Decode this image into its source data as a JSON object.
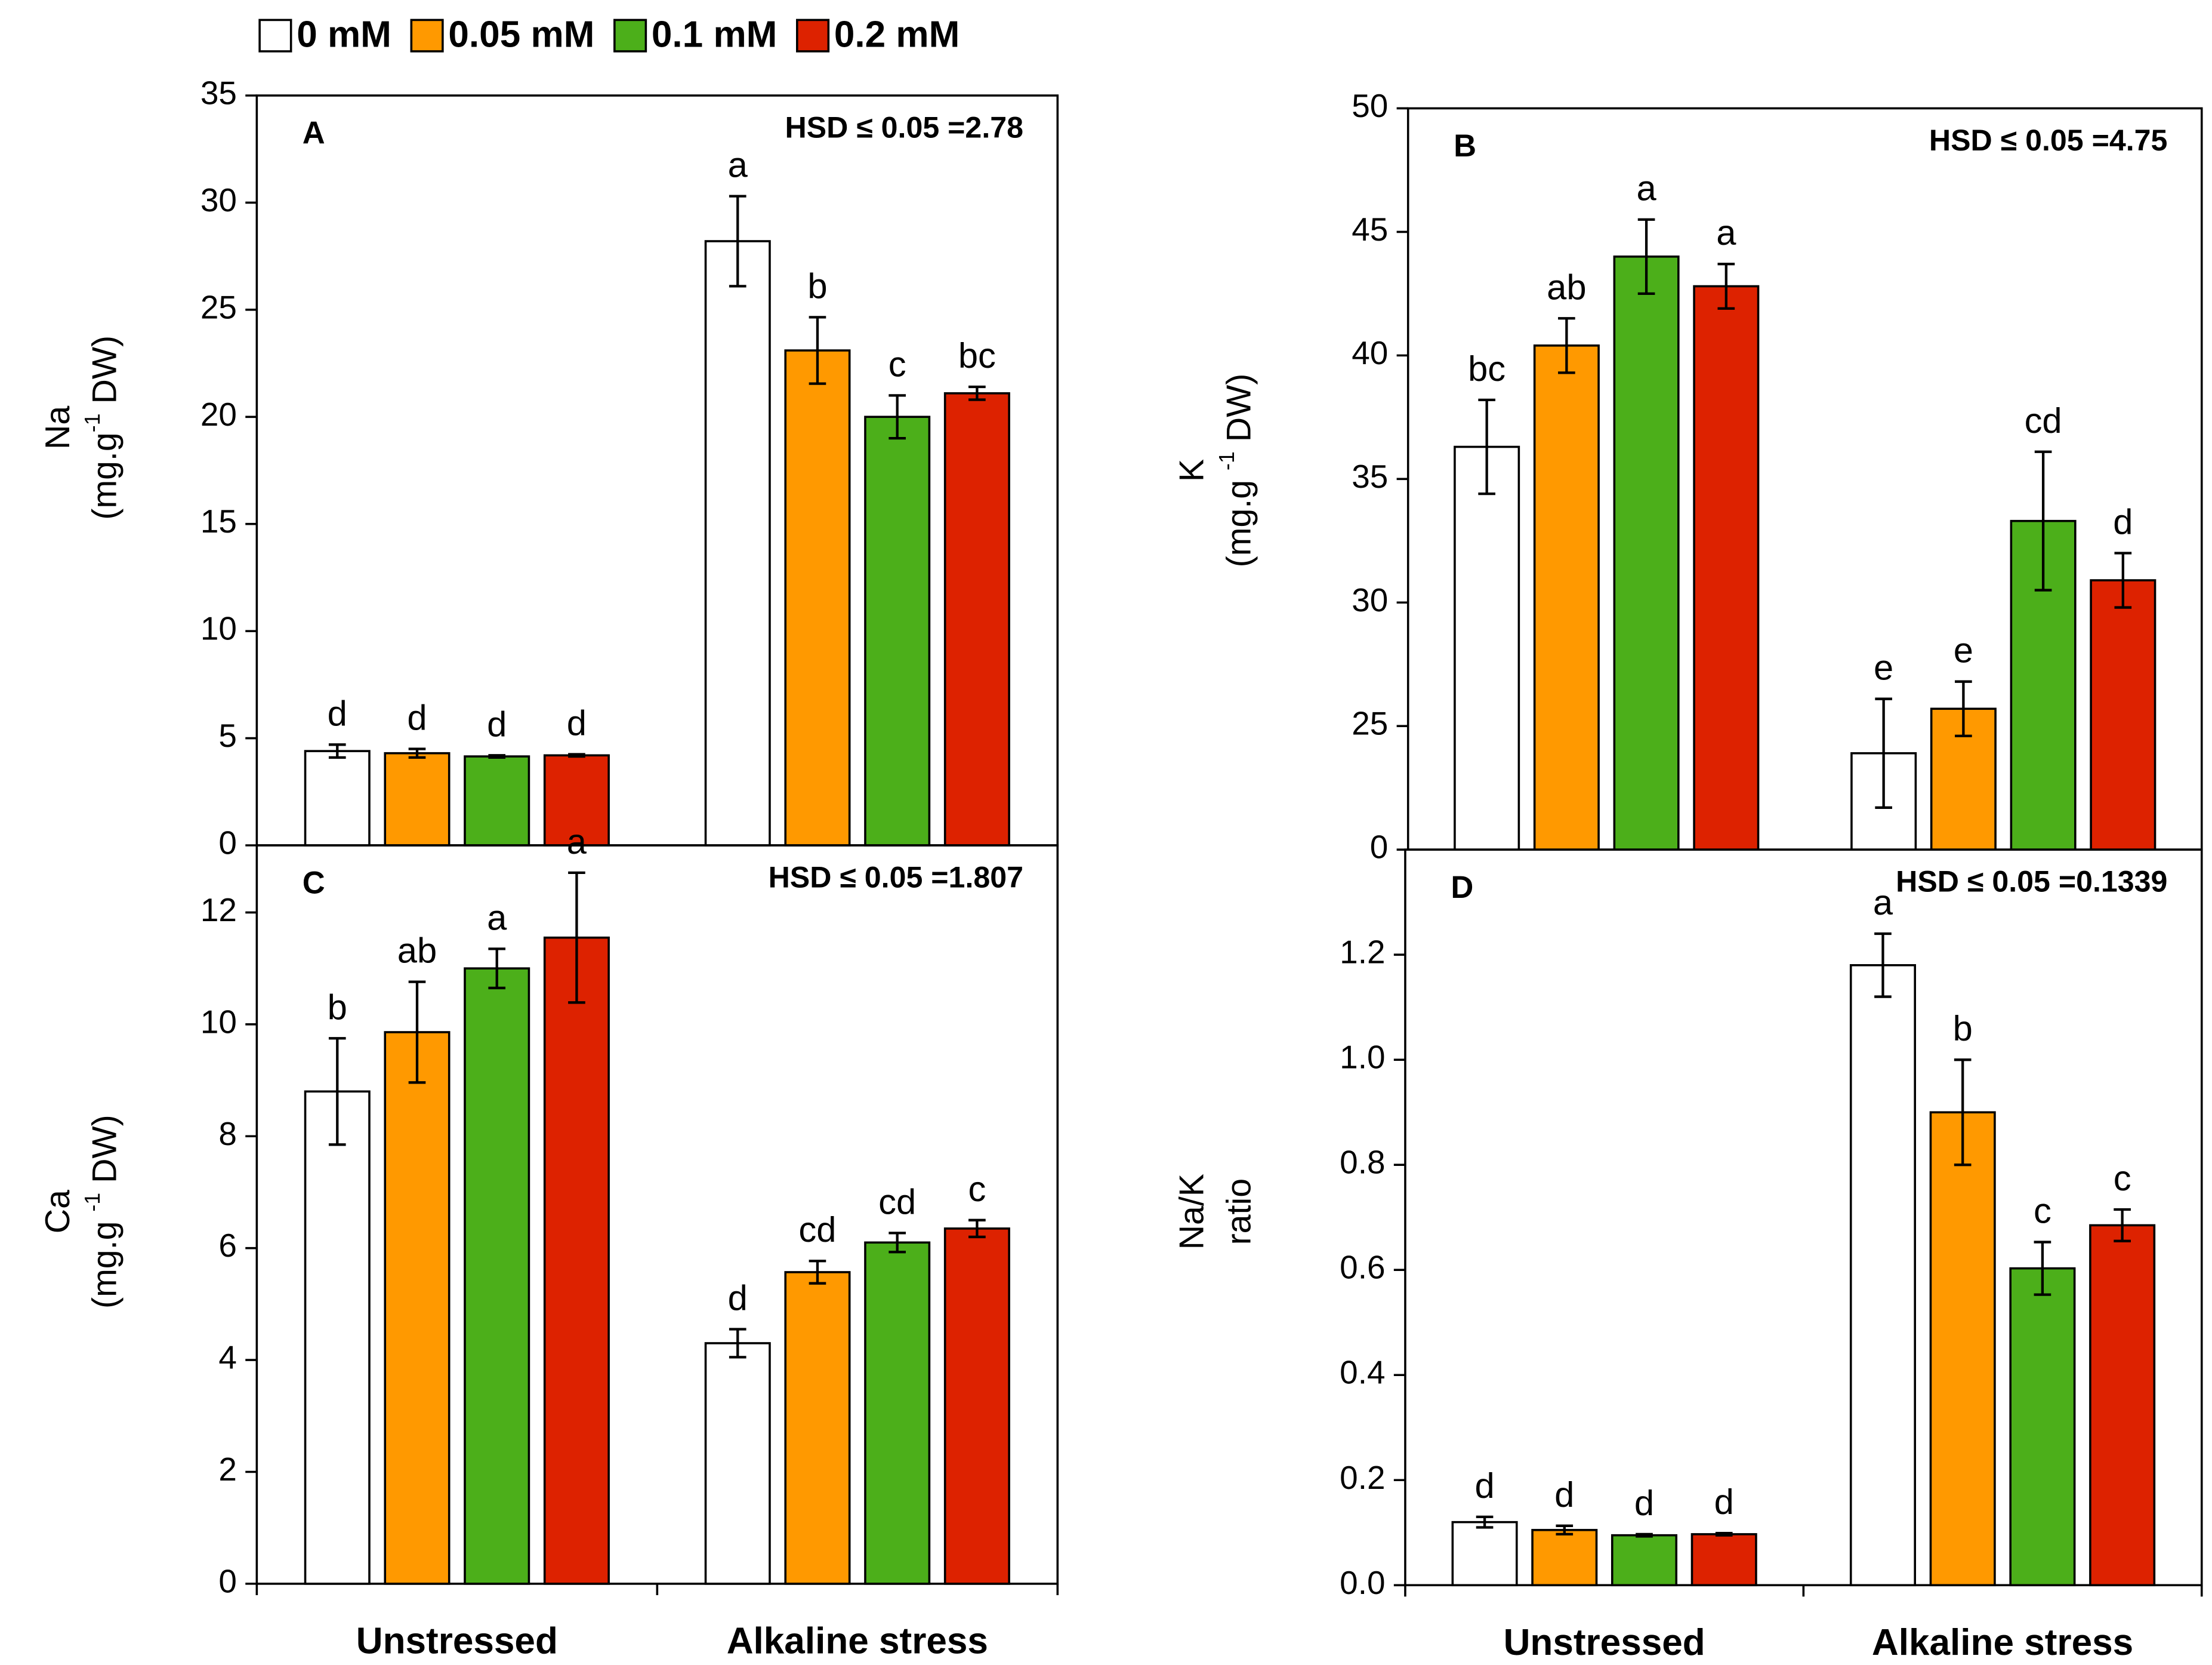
{
  "chart_data": [
    {
      "type": "bar",
      "panel": "A",
      "annotation": "HSD ≤ 0.05 =2.78",
      "ylabel": "Na",
      "ylabel_unit": [
        "(mg.g",
        "-1",
        " DW)"
      ],
      "ylim": [
        0,
        35
      ],
      "yticks": [
        0,
        5,
        10,
        15,
        20,
        25,
        30,
        35
      ],
      "series": [
        {
          "name": "0 mM",
          "color": "#ffffff",
          "values": [
            4.4,
            28.2
          ],
          "errors": [
            0.3,
            2.1
          ],
          "letters": [
            "d",
            "a"
          ]
        },
        {
          "name": "0.05 mM",
          "color": "#ff9900",
          "values": [
            4.3,
            23.1
          ],
          "errors": [
            0.2,
            1.55
          ],
          "letters": [
            "d",
            "b"
          ]
        },
        {
          "name": "0.1 mM",
          "color": "#4caf1a",
          "values": [
            4.15,
            20.0
          ],
          "errors": [
            0.05,
            1.0
          ],
          "letters": [
            "d",
            "c"
          ]
        },
        {
          "name": "0.2 mM",
          "color": "#dd2200",
          "values": [
            4.2,
            21.1
          ],
          "errors": [
            0.05,
            0.3
          ],
          "letters": [
            "d",
            "bc"
          ]
        }
      ]
    },
    {
      "type": "bar",
      "panel": "B",
      "annotation": "HSD ≤ 0.05 =4.75",
      "ylabel": "K",
      "ylabel_unit": [
        "(mg.g ",
        "-1",
        " DW)"
      ],
      "ylim": [
        0,
        50
      ],
      "ybreak": [
        0,
        20
      ],
      "yticks": [
        0,
        25,
        30,
        35,
        40,
        45,
        50
      ],
      "series": [
        {
          "color": "#ffffff",
          "values": [
            36.3,
            23.9
          ],
          "errors": [
            1.9,
            2.2
          ],
          "letters": [
            "bc",
            "e"
          ]
        },
        {
          "color": "#ff9900",
          "values": [
            40.4,
            25.7
          ],
          "errors": [
            1.1,
            1.1
          ],
          "letters": [
            "ab",
            "e"
          ]
        },
        {
          "color": "#4caf1a",
          "values": [
            44.0,
            33.3
          ],
          "errors": [
            1.5,
            2.8
          ],
          "letters": [
            "a",
            "cd"
          ]
        },
        {
          "color": "#dd2200",
          "values": [
            42.8,
            30.9
          ],
          "errors": [
            0.9,
            1.1
          ],
          "letters": [
            "a",
            "d"
          ]
        }
      ]
    },
    {
      "type": "bar",
      "panel": "C",
      "annotation": "HSD ≤ 0.05 =1.807",
      "ylabel": "Ca",
      "ylabel_unit": [
        "(mg.g ",
        "-1",
        " DW)"
      ],
      "categories": [
        "Unstressed",
        "Alkaline stress"
      ],
      "ylim": [
        0,
        13.2
      ],
      "yticks": [
        0,
        2,
        4,
        6,
        8,
        10,
        12
      ],
      "series": [
        {
          "color": "#ffffff",
          "values": [
            8.8,
            4.3
          ],
          "errors": [
            0.95,
            0.25
          ],
          "letters": [
            "b",
            "d"
          ]
        },
        {
          "color": "#ff9900",
          "values": [
            9.86,
            5.57
          ],
          "errors": [
            0.9,
            0.2
          ],
          "letters": [
            "ab",
            "cd"
          ]
        },
        {
          "color": "#4caf1a",
          "values": [
            11.0,
            6.1
          ],
          "errors": [
            0.35,
            0.17
          ],
          "letters": [
            "a",
            "cd"
          ]
        },
        {
          "color": "#dd2200",
          "values": [
            11.55,
            6.35
          ],
          "errors": [
            1.16,
            0.15
          ],
          "letters": [
            "a",
            "c"
          ]
        }
      ]
    },
    {
      "type": "bar",
      "panel": "D",
      "annotation": "HSD ≤ 0.05 =0.1339",
      "ylabel": "Na/K",
      "ylabel_unit": [
        "ratio"
      ],
      "categories": [
        "Unstressed",
        "Alkaline stress"
      ],
      "ylim": [
        0,
        1.4
      ],
      "yticks": [
        {
          "value": 0,
          "label": "0.0"
        },
        0.2,
        0.4,
        0.6,
        0.8,
        {
          "value": 1,
          "label": "1.0"
        },
        1.2
      ],
      "series": [
        {
          "color": "#ffffff",
          "values": [
            0.12,
            1.18
          ],
          "errors": [
            0.01,
            0.06
          ],
          "letters": [
            "d",
            "a"
          ]
        },
        {
          "color": "#ff9900",
          "values": [
            0.105,
            0.9
          ],
          "errors": [
            0.008,
            0.1
          ],
          "letters": [
            "d",
            "b"
          ]
        },
        {
          "color": "#4caf1a",
          "values": [
            0.095,
            0.603
          ],
          "errors": [
            0.002,
            0.05
          ],
          "letters": [
            "d",
            "c"
          ]
        },
        {
          "color": "#dd2200",
          "values": [
            0.097,
            0.685
          ],
          "errors": [
            0.002,
            0.03
          ],
          "letters": [
            "d",
            "c"
          ]
        }
      ]
    }
  ]
}
